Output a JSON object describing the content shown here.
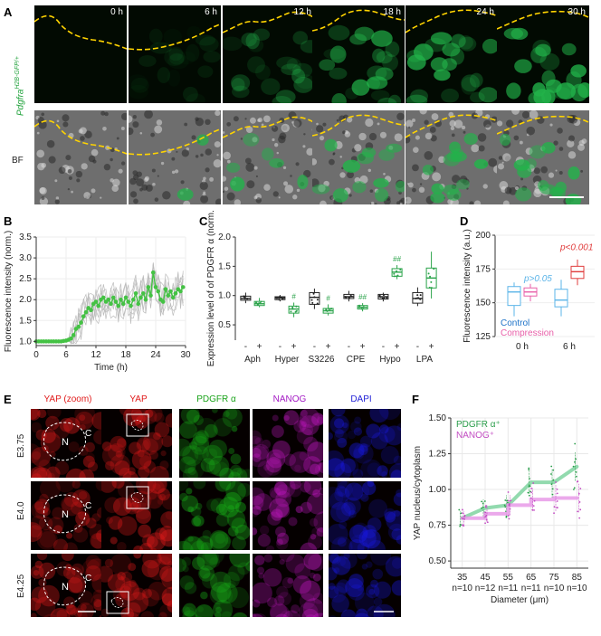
{
  "colors": {
    "gfp": "#22b34a",
    "yap": "#e01a1a",
    "pdgfr": "#19b319",
    "nanog": "#c418c4",
    "dapi": "#1919e6",
    "control": "#1e73c8",
    "compression": "#e85fa8",
    "pvalue_control": "#5bb4e8",
    "pvalue_compression": "#e03c3c",
    "hash_marks": "#2aa34a",
    "mean_line": "#44c244"
  },
  "panel_a": {
    "label": "A",
    "row_labels": [
      "Pdgfra",
      "H2B-GFP/+",
      "BF"
    ],
    "time_labels": [
      "0 h",
      "6 h",
      "12 h",
      "18 h",
      "24 h",
      "30 h"
    ]
  },
  "panel_b": {
    "label": "B"
  },
  "panel_c": {
    "label": "C",
    "hash_labels": [
      "#",
      "#",
      "##",
      "##"
    ]
  },
  "panel_d": {
    "label": "D"
  },
  "panel_e": {
    "label": "E",
    "column_labels": [
      "YAP (zoom)",
      "YAP",
      "PDGFR α",
      "NANOG",
      "DAPI"
    ],
    "row_labels": [
      "E3.75",
      "E4.0",
      "E4.25"
    ],
    "region_labels": [
      "N",
      "C"
    ]
  },
  "panel_f": {
    "label": "F"
  },
  "chart_data": [
    {
      "type": "line",
      "panel": "B",
      "xlabel": "Time (h)",
      "ylabel": "Fluorescence intensity (norm.)",
      "xlim": [
        0,
        30
      ],
      "ylim": [
        0.9,
        3.5
      ],
      "xticks": [
        "0",
        "6",
        "12",
        "18",
        "24",
        "30"
      ],
      "yticks": [
        "1.0",
        "1.5",
        "2.0",
        "2.5",
        "3.0",
        "3.5"
      ],
      "series": [
        {
          "x": [
            0,
            0.5,
            1,
            1.5,
            2,
            2.5,
            3,
            3.5,
            4,
            4.5,
            5,
            5.5,
            6,
            6.5,
            7,
            7.5,
            8,
            8.5,
            9,
            9.5,
            10,
            10.5,
            11,
            11.5,
            12,
            12.5,
            13,
            13.5,
            14,
            14.5,
            15,
            15.5,
            16,
            16.5,
            17,
            17.5,
            18,
            18.5,
            19,
            19.5,
            20,
            20.5,
            21,
            21.5,
            22,
            22.5,
            23,
            23.5,
            24,
            24.5,
            25,
            25.5,
            26,
            26.5,
            27,
            27.5,
            28,
            28.5,
            29,
            29.5
          ],
          "y": [
            1.0,
            1.0,
            1.0,
            1.0,
            1.0,
            1.0,
            1.0,
            1.0,
            1.0,
            1.0,
            1.0,
            1.01,
            1.02,
            1.04,
            1.07,
            1.15,
            1.3,
            1.35,
            1.45,
            1.6,
            1.7,
            1.8,
            1.75,
            1.9,
            1.95,
            1.85,
            2.0,
            2.05,
            1.95,
            2.0,
            1.9,
            2.05,
            1.95,
            1.85,
            2.0,
            1.9,
            2.05,
            1.95,
            1.85,
            2.0,
            2.15,
            1.9,
            2.05,
            2.15,
            2.0,
            2.3,
            2.1,
            2.65,
            2.3,
            2.2,
            2.0,
            1.95,
            2.25,
            2.1,
            2.2,
            2.05,
            2.15,
            2.25,
            2.2,
            2.3
          ]
        }
      ]
    },
    {
      "type": "box",
      "panel": "C",
      "ylabel": "Expression level of of PDGFR α (norm.)",
      "ylim": [
        0.3,
        2.0
      ],
      "yticks": [
        "0.5",
        "1.0",
        "1.5",
        "2.0"
      ],
      "categories": [
        "Aph",
        "Hyper",
        "S3226",
        "CPE",
        "Hypo",
        "LPA"
      ],
      "sublabels": [
        "-",
        "+"
      ],
      "series": [
        {
          "name": "-",
          "boxes": [
            {
              "q1": 0.92,
              "median": 0.95,
              "q3": 0.99,
              "min": 0.87,
              "max": 1.05
            },
            {
              "q1": 0.93,
              "median": 0.96,
              "q3": 0.98,
              "min": 0.9,
              "max": 1.01
            },
            {
              "q1": 0.85,
              "median": 0.97,
              "q3": 1.05,
              "min": 0.77,
              "max": 1.12
            },
            {
              "q1": 0.95,
              "median": 0.98,
              "q3": 1.02,
              "min": 0.9,
              "max": 1.08
            },
            {
              "q1": 0.94,
              "median": 0.98,
              "q3": 1.02,
              "min": 0.9,
              "max": 1.05
            },
            {
              "q1": 0.87,
              "median": 0.95,
              "q3": 1.05,
              "min": 0.82,
              "max": 1.14
            }
          ]
        },
        {
          "name": "+",
          "boxes": [
            {
              "q1": 0.83,
              "median": 0.86,
              "q3": 0.9,
              "min": 0.8,
              "max": 0.96
            },
            {
              "q1": 0.7,
              "median": 0.77,
              "q3": 0.82,
              "min": 0.63,
              "max": 0.88
            },
            {
              "q1": 0.7,
              "median": 0.74,
              "q3": 0.78,
              "min": 0.66,
              "max": 0.85
            },
            {
              "q1": 0.77,
              "median": 0.8,
              "q3": 0.83,
              "min": 0.73,
              "max": 0.87
            },
            {
              "q1": 1.33,
              "median": 1.4,
              "q3": 1.46,
              "min": 1.28,
              "max": 1.52
            },
            {
              "q1": 1.13,
              "median": 1.3,
              "q3": 1.47,
              "min": 0.95,
              "max": 1.75
            }
          ]
        }
      ]
    },
    {
      "type": "box",
      "panel": "D",
      "ylabel": "Fluorescence intensity (a.u.)",
      "ylim": [
        125,
        200
      ],
      "yticks": [
        "125",
        "150",
        "175",
        "200"
      ],
      "categories": [
        "0 h",
        "6 h"
      ],
      "legend": [
        "Control",
        "Compression"
      ],
      "annotations": [
        "p>0.05",
        "p<0.001"
      ],
      "series": [
        {
          "name": "Control",
          "boxes": [
            {
              "q1": 148,
              "median": 158,
              "q3": 162,
              "min": 140,
              "max": 165
            },
            {
              "q1": 147,
              "median": 152,
              "q3": 160,
              "min": 140,
              "max": 167
            }
          ]
        },
        {
          "name": "Compression",
          "boxes": [
            {
              "q1": 155,
              "median": 158,
              "q3": 161,
              "min": 151,
              "max": 164
            },
            {
              "q1": 168,
              "median": 173,
              "q3": 177,
              "min": 163,
              "max": 182
            }
          ]
        }
      ]
    },
    {
      "type": "line",
      "panel": "F",
      "xlabel": "Diameter (μm)",
      "ylabel": "YAP nucleus/cytoplasm",
      "xlim": [
        30,
        90
      ],
      "ylim": [
        0.45,
        1.5
      ],
      "yticks": [
        "0.50",
        "0.75",
        "1.00",
        "1.25",
        "1.50"
      ],
      "categories": [
        "35",
        "45",
        "55",
        "65",
        "75",
        "85"
      ],
      "n_labels": [
        "n=10",
        "n=12",
        "n=11",
        "n=11",
        "n=10",
        "n=10"
      ],
      "series": [
        {
          "name": "PDGFR α⁺",
          "values": [
            0.8,
            0.87,
            0.89,
            1.05,
            1.05,
            1.16
          ]
        },
        {
          "name": "NANOG⁺",
          "values": [
            0.8,
            0.83,
            0.89,
            0.93,
            0.94,
            0.94
          ]
        }
      ]
    }
  ]
}
